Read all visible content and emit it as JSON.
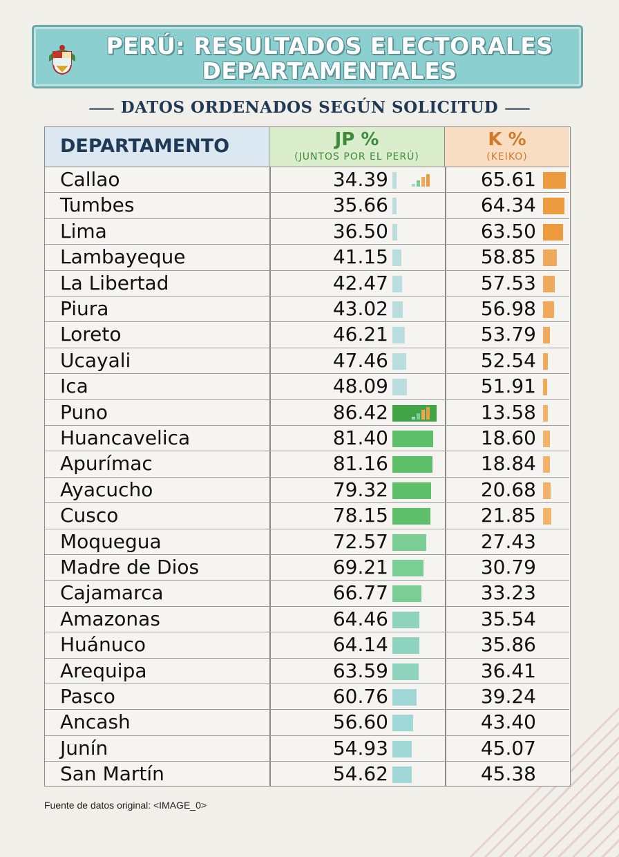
{
  "title": "PERÚ: RESULTADOS ELECTORALES DEPARTAMENTALES",
  "subtitle": "DATOS ORDENADOS SEGÚN SOLICITUD",
  "icons": {
    "emblem": "peru-coat-of-arms-icon",
    "mini_chart": "bar-chart-icon"
  },
  "footer": "Fuente de datos original: <IMAGE_0>",
  "chart_data": {
    "type": "table",
    "columns": [
      {
        "label": "DEPARTAMENTO"
      },
      {
        "label": "JP %",
        "sublabel": "(JUNTOS POR EL PERÚ)",
        "color": "#3c8b3c"
      },
      {
        "label": "K %",
        "sublabel": "(KEIKO)",
        "color": "#d07a27"
      }
    ],
    "rows": [
      {
        "departamento": "Callao",
        "jp": "34.39",
        "k": "65.61"
      },
      {
        "departamento": "Tumbes",
        "jp": "35.66",
        "k": "64.34"
      },
      {
        "departamento": "Lima",
        "jp": "36.50",
        "k": "63.50"
      },
      {
        "departamento": "Lambayeque",
        "jp": "41.15",
        "k": "58.85"
      },
      {
        "departamento": "La Libertad",
        "jp": "42.47",
        "k": "57.53"
      },
      {
        "departamento": "Piura",
        "jp": "43.02",
        "k": "56.98"
      },
      {
        "departamento": "Loreto",
        "jp": "46.21",
        "k": "53.79"
      },
      {
        "departamento": "Ucayali",
        "jp": "47.46",
        "k": "52.54"
      },
      {
        "departamento": "Ica",
        "jp": "48.09",
        "k": "51.91"
      },
      {
        "departamento": "Puno",
        "jp": "86.42",
        "k": "13.58"
      },
      {
        "departamento": "Huancavelica",
        "jp": "81.40",
        "k": "18.60"
      },
      {
        "departamento": "Apurímac",
        "jp": "81.16",
        "k": "18.84"
      },
      {
        "departamento": "Ayacucho",
        "jp": "79.32",
        "k": "20.68"
      },
      {
        "departamento": "Cusco",
        "jp": "78.15",
        "k": "21.85"
      },
      {
        "departamento": "Moquegua",
        "jp": "72.57",
        "k": "27.43"
      },
      {
        "departamento": "Madre de Dios",
        "jp": "69.21",
        "k": "30.79"
      },
      {
        "departamento": "Cajamarca",
        "jp": "66.77",
        "k": "33.23"
      },
      {
        "departamento": "Amazonas",
        "jp": "64.46",
        "k": "35.54"
      },
      {
        "departamento": "Huánuco",
        "jp": "64.14",
        "k": "35.86"
      },
      {
        "departamento": "Arequipa",
        "jp": "63.59",
        "k": "36.41"
      },
      {
        "departamento": "Pasco",
        "jp": "60.76",
        "k": "39.24"
      },
      {
        "departamento": "Ancash",
        "jp": "56.60",
        "k": "43.40"
      },
      {
        "departamento": "Junín",
        "jp": "54.93",
        "k": "45.07"
      },
      {
        "departamento": "San Martín",
        "jp": "54.62",
        "k": "45.38"
      }
    ]
  }
}
